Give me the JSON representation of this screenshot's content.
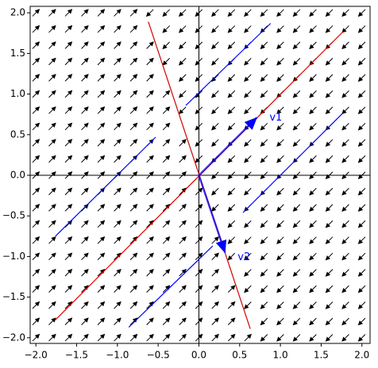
{
  "chart_data": {
    "type": "phase_portrait",
    "xlim": [
      -2.07,
      2.1
    ],
    "ylim": [
      -2.07,
      2.08
    ],
    "xticks": [
      {
        "value": -2,
        "label": "−2.0"
      },
      {
        "value": -1.5,
        "label": "−1.5"
      },
      {
        "value": -1,
        "label": "−1.0"
      },
      {
        "value": -0.5,
        "label": "−0.5"
      },
      {
        "value": 0,
        "label": "0.0"
      },
      {
        "value": 0.5,
        "label": "0.5"
      },
      {
        "value": 1,
        "label": "1.0"
      },
      {
        "value": 1.5,
        "label": "1.5"
      },
      {
        "value": 2,
        "label": "2.0"
      }
    ],
    "yticks": [
      {
        "value": -2,
        "label": "−2.0"
      },
      {
        "value": -1.5,
        "label": "−1.5"
      },
      {
        "value": -1,
        "label": "−1.0"
      },
      {
        "value": -0.5,
        "label": "−0.5"
      },
      {
        "value": 0,
        "label": "0.0"
      },
      {
        "value": 0.5,
        "label": "0.5"
      },
      {
        "value": 1,
        "label": "1.0"
      },
      {
        "value": 1.5,
        "label": "1.5"
      },
      {
        "value": 2,
        "label": "2.0"
      }
    ],
    "field": {
      "matrix": [
        [
          -3,
          -1
        ],
        [
          -3,
          -1
        ]
      ],
      "xrange": [
        -2,
        2
      ],
      "yrange": [
        -2,
        2
      ],
      "step": 0.2,
      "color": "#000000"
    },
    "segments": [
      {
        "color": "#d40000",
        "x": [
          -1.76,
          1.77
        ],
        "y": [
          -1.78,
          1.77
        ]
      },
      {
        "color": "#d40000",
        "x": [
          -0.62,
          0.63
        ],
        "y": [
          1.89,
          -1.89
        ]
      },
      {
        "color": "#0000ff",
        "x": [
          -1.76,
          -0.53
        ],
        "y": [
          -0.75,
          0.47
        ]
      },
      {
        "color": "#0000ff",
        "x": [
          -0.16,
          0.88
        ],
        "y": [
          0.86,
          1.87
        ]
      },
      {
        "color": "#0000ff",
        "x": [
          0.54,
          1.76
        ],
        "y": [
          -0.46,
          0.76
        ]
      },
      {
        "color": "#0000ff",
        "x": [
          -0.86,
          0.17
        ],
        "y": [
          -1.87,
          -0.87
        ]
      }
    ],
    "vectors": [
      {
        "label": "v1",
        "color": "#0000ff",
        "x": 0.71,
        "y": 0.71
      },
      {
        "label": "v2",
        "color": "#0000ff",
        "x": 0.32,
        "y": -0.95
      }
    ]
  }
}
